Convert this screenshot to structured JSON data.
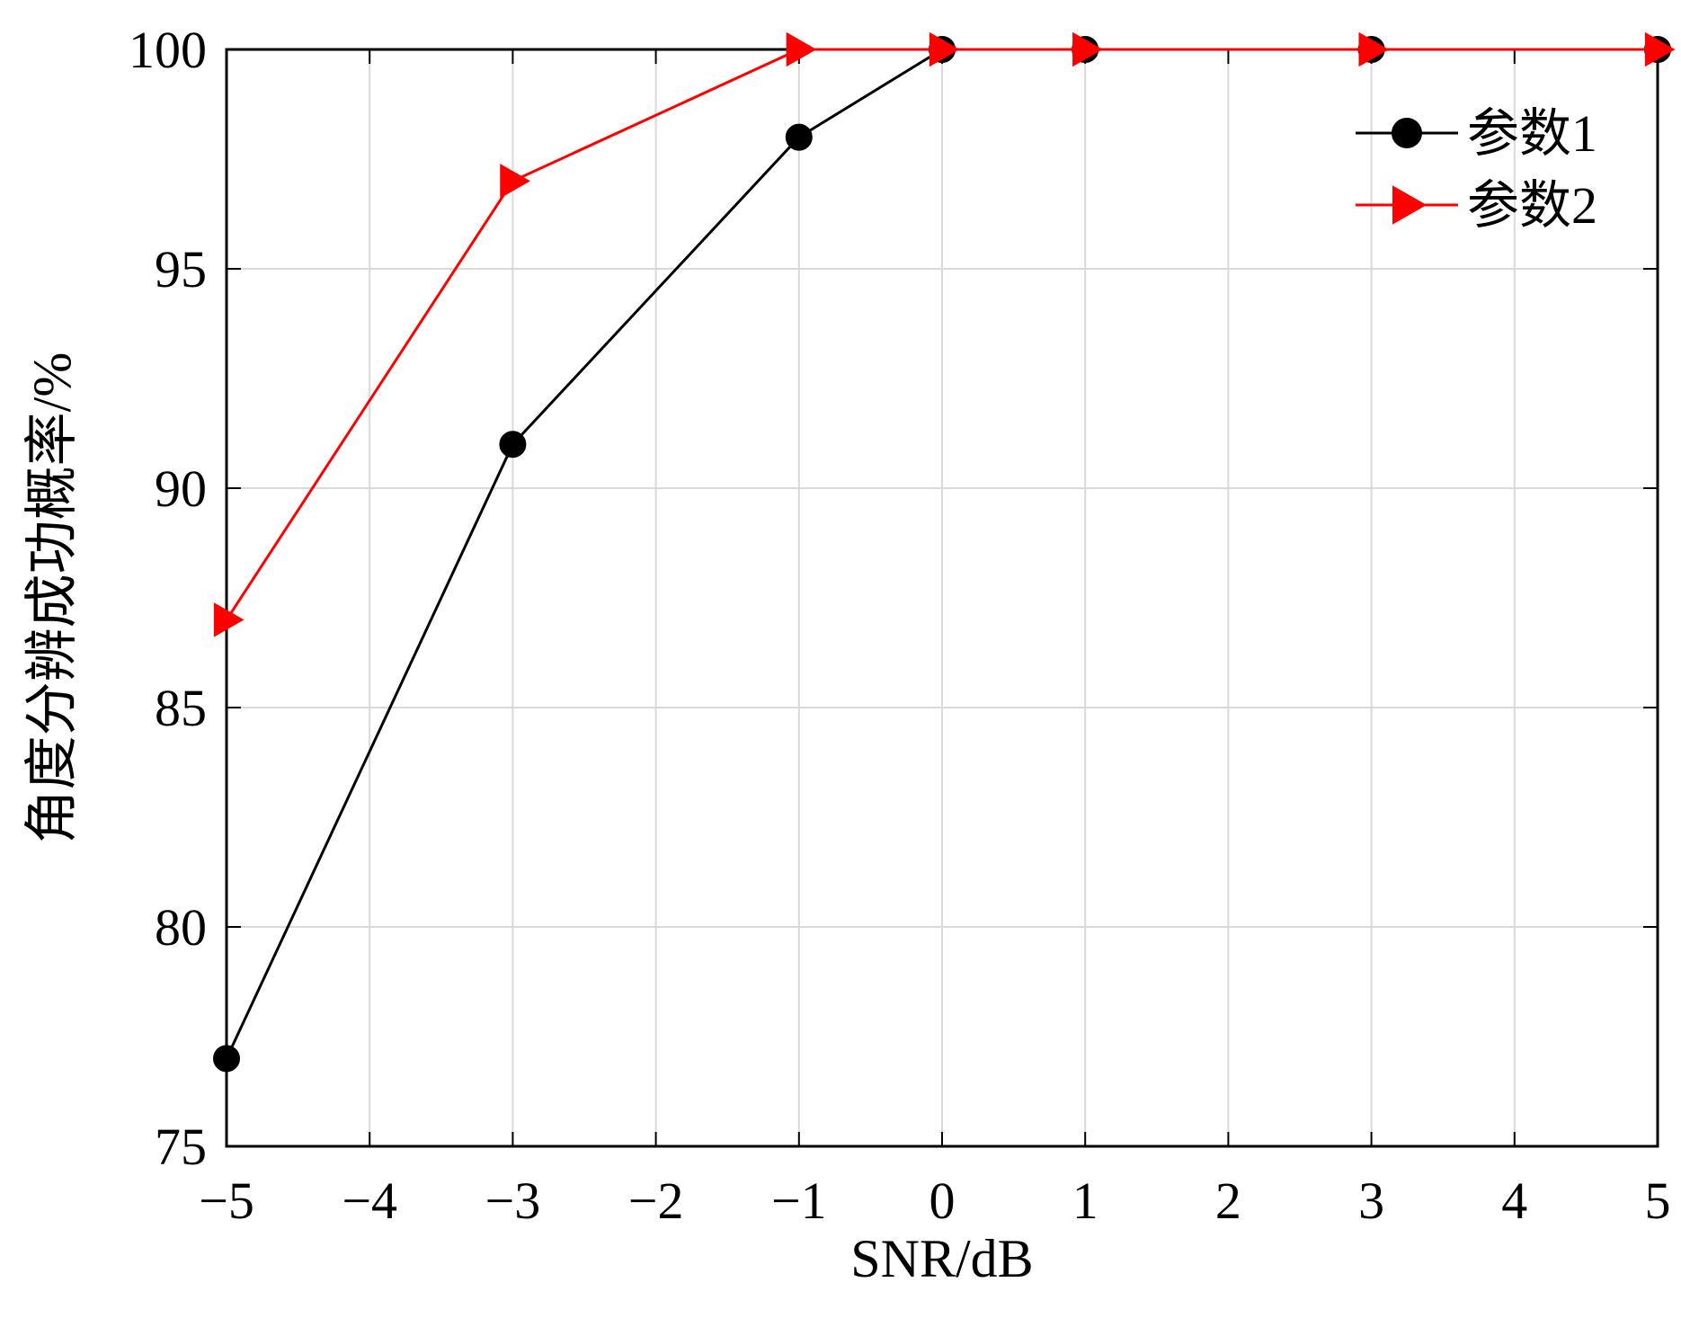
{
  "chart_data": {
    "type": "line",
    "xlabel": "SNR/dB",
    "ylabel": "角度分辨成功概率/%",
    "xlim": [
      -5,
      5
    ],
    "ylim": [
      75,
      100
    ],
    "xticks": [
      -5,
      -4,
      -3,
      -2,
      -1,
      0,
      1,
      2,
      3,
      4,
      5
    ],
    "xtick_labels": [
      "−5",
      "−4",
      "−3",
      "−2",
      "−1",
      "0",
      "1",
      "2",
      "3",
      "4",
      "5"
    ],
    "yticks": [
      75,
      80,
      85,
      90,
      95,
      100
    ],
    "ytick_labels": [
      "75",
      "80",
      "85",
      "90",
      "95",
      "100"
    ],
    "grid": true,
    "legend_position": "top-right",
    "series": [
      {
        "name": "参数1",
        "color": "#000000",
        "marker": "circle",
        "x": [
          -5,
          -3,
          -1,
          0,
          1,
          3,
          5
        ],
        "y": [
          77,
          91,
          98,
          100,
          100,
          100,
          100
        ]
      },
      {
        "name": "参数2",
        "color": "#ff0000",
        "marker": "triangle-right",
        "x": [
          -5,
          -3,
          -1,
          0,
          1,
          3,
          5
        ],
        "y": [
          87,
          97,
          100,
          100,
          100,
          100,
          100
        ]
      }
    ]
  }
}
